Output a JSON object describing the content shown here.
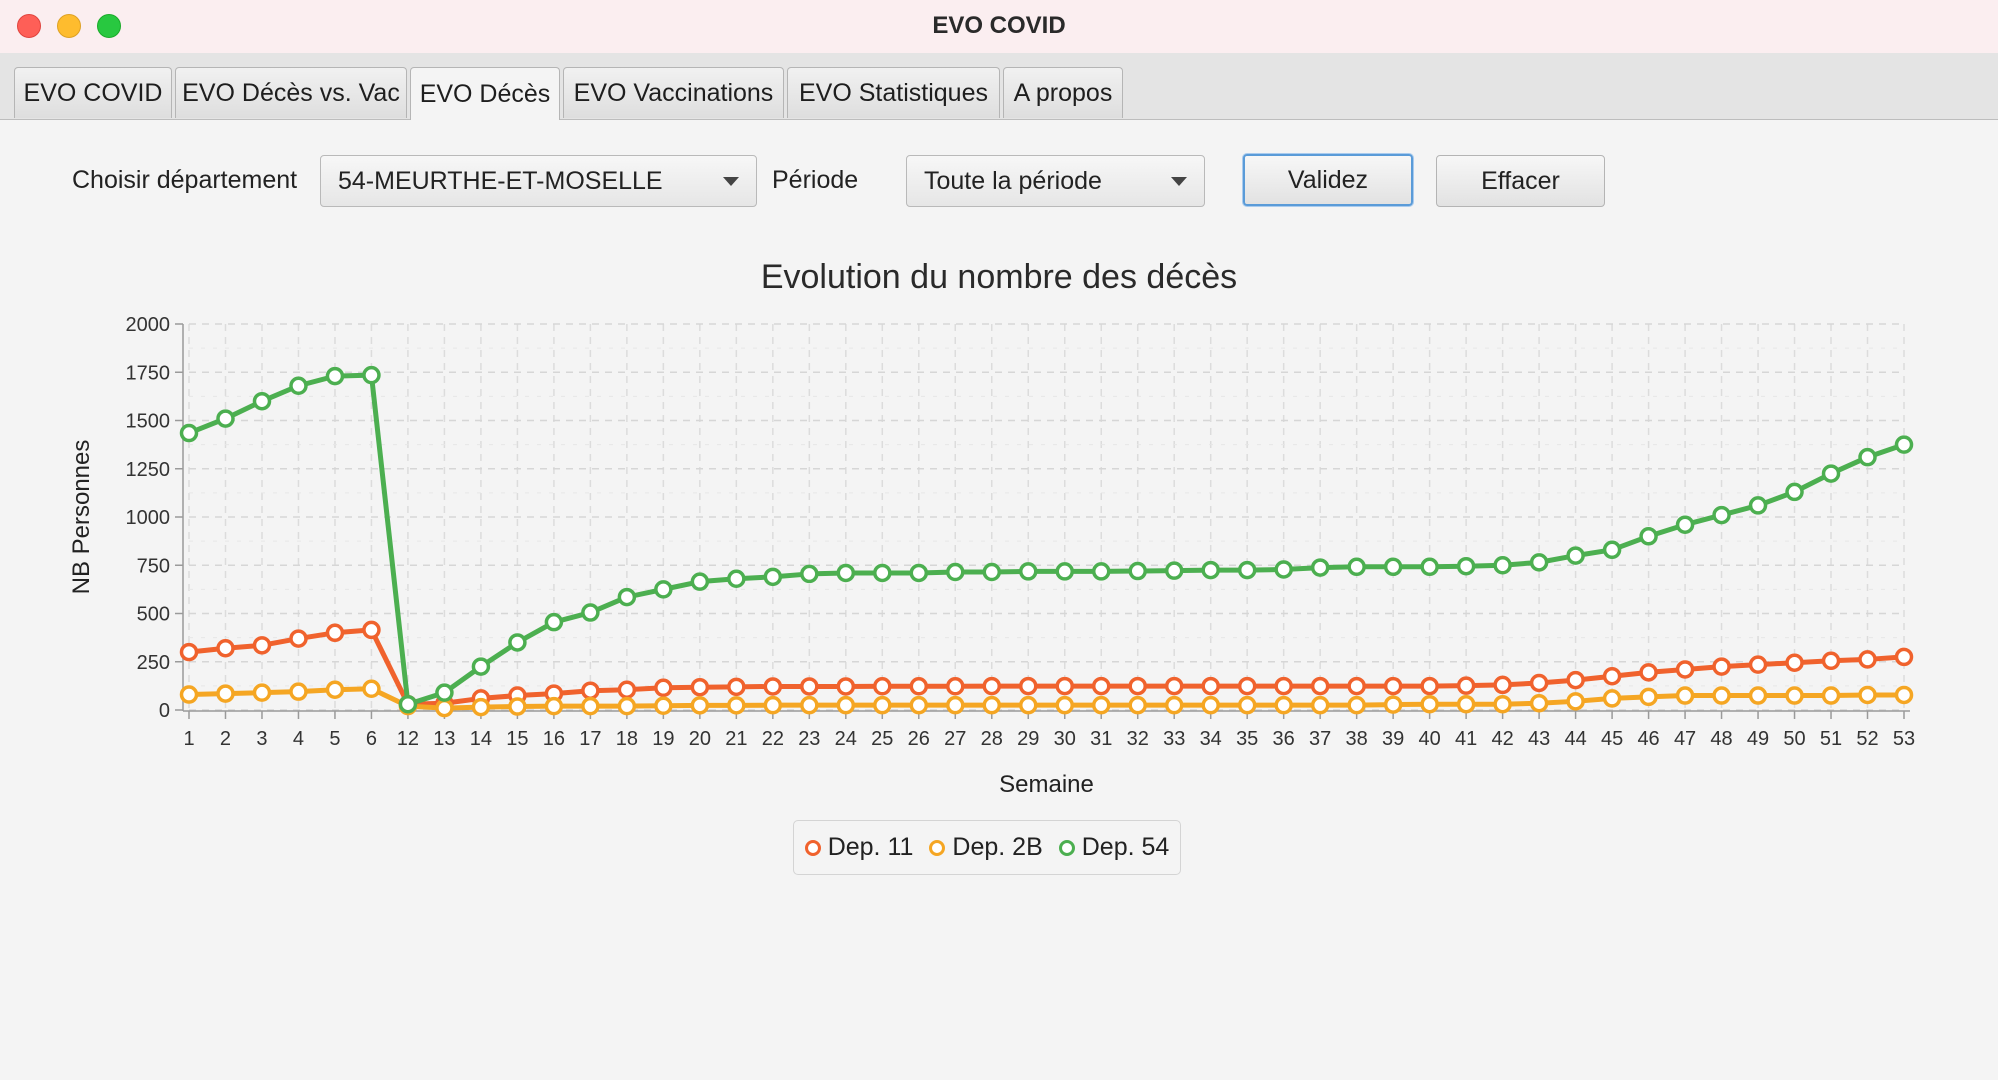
{
  "window": {
    "title": "EVO COVID"
  },
  "tabs": [
    {
      "label": "EVO COVID",
      "active": false
    },
    {
      "label": "EVO Décès vs. Vac",
      "active": false
    },
    {
      "label": "EVO Décès",
      "active": true
    },
    {
      "label": "EVO Vaccinations",
      "active": false
    },
    {
      "label": "EVO Statistiques",
      "active": false
    },
    {
      "label": "A propos",
      "active": false
    }
  ],
  "controls": {
    "departement_label": "Choisir département",
    "departement_value": "54-MEURTHE-ET-MOSELLE",
    "periode_label": "Période",
    "periode_value": "Toute la période",
    "validate_label": "Validez",
    "clear_label": "Effacer"
  },
  "chart_data": {
    "type": "line",
    "title": "Evolution du nombre des décès",
    "xlabel": "Semaine",
    "ylabel": "NB Personnes",
    "ylim": [
      0,
      2000
    ],
    "yticks": [
      "0",
      "250",
      "500",
      "750",
      "1000",
      "1250",
      "1500",
      "1750",
      "2000"
    ],
    "grid": true,
    "legend_position": "bottom",
    "categories": [
      "1",
      "2",
      "3",
      "4",
      "5",
      "6",
      "12",
      "13",
      "14",
      "15",
      "16",
      "17",
      "18",
      "19",
      "20",
      "21",
      "22",
      "23",
      "24",
      "25",
      "26",
      "27",
      "28",
      "29",
      "30",
      "31",
      "32",
      "33",
      "34",
      "35",
      "36",
      "37",
      "38",
      "39",
      "40",
      "41",
      "42",
      "43",
      "44",
      "45",
      "46",
      "47",
      "48",
      "49",
      "50",
      "51",
      "52",
      "53"
    ],
    "series": [
      {
        "name": "Dep. 11",
        "color": "#f0622d",
        "values": [
          300,
          320,
          335,
          370,
          400,
          415,
          30,
          35,
          60,
          75,
          85,
          100,
          105,
          115,
          118,
          120,
          122,
          122,
          122,
          123,
          123,
          123,
          124,
          124,
          124,
          124,
          124,
          124,
          124,
          124,
          124,
          124,
          124,
          124,
          124,
          126,
          130,
          140,
          155,
          175,
          195,
          210,
          225,
          235,
          245,
          255,
          262,
          275
        ]
      },
      {
        "name": "Dep. 2B",
        "color": "#f5a623",
        "values": [
          80,
          85,
          90,
          95,
          105,
          110,
          20,
          10,
          15,
          18,
          20,
          20,
          20,
          22,
          24,
          24,
          25,
          25,
          25,
          25,
          25,
          25,
          25,
          25,
          25,
          25,
          25,
          25,
          25,
          25,
          25,
          25,
          25,
          28,
          30,
          30,
          30,
          35,
          45,
          60,
          68,
          75,
          75,
          75,
          75,
          75,
          78,
          78
        ]
      },
      {
        "name": "Dep. 54",
        "color": "#4caf50",
        "values": [
          1435,
          1510,
          1600,
          1680,
          1730,
          1735,
          30,
          90,
          225,
          350,
          455,
          505,
          585,
          625,
          665,
          680,
          690,
          705,
          710,
          710,
          710,
          715,
          715,
          718,
          718,
          718,
          720,
          722,
          725,
          725,
          728,
          738,
          742,
          742,
          742,
          745,
          750,
          765,
          800,
          830,
          900,
          960,
          1010,
          1060,
          1130,
          1225,
          1310,
          1375
        ]
      }
    ]
  }
}
